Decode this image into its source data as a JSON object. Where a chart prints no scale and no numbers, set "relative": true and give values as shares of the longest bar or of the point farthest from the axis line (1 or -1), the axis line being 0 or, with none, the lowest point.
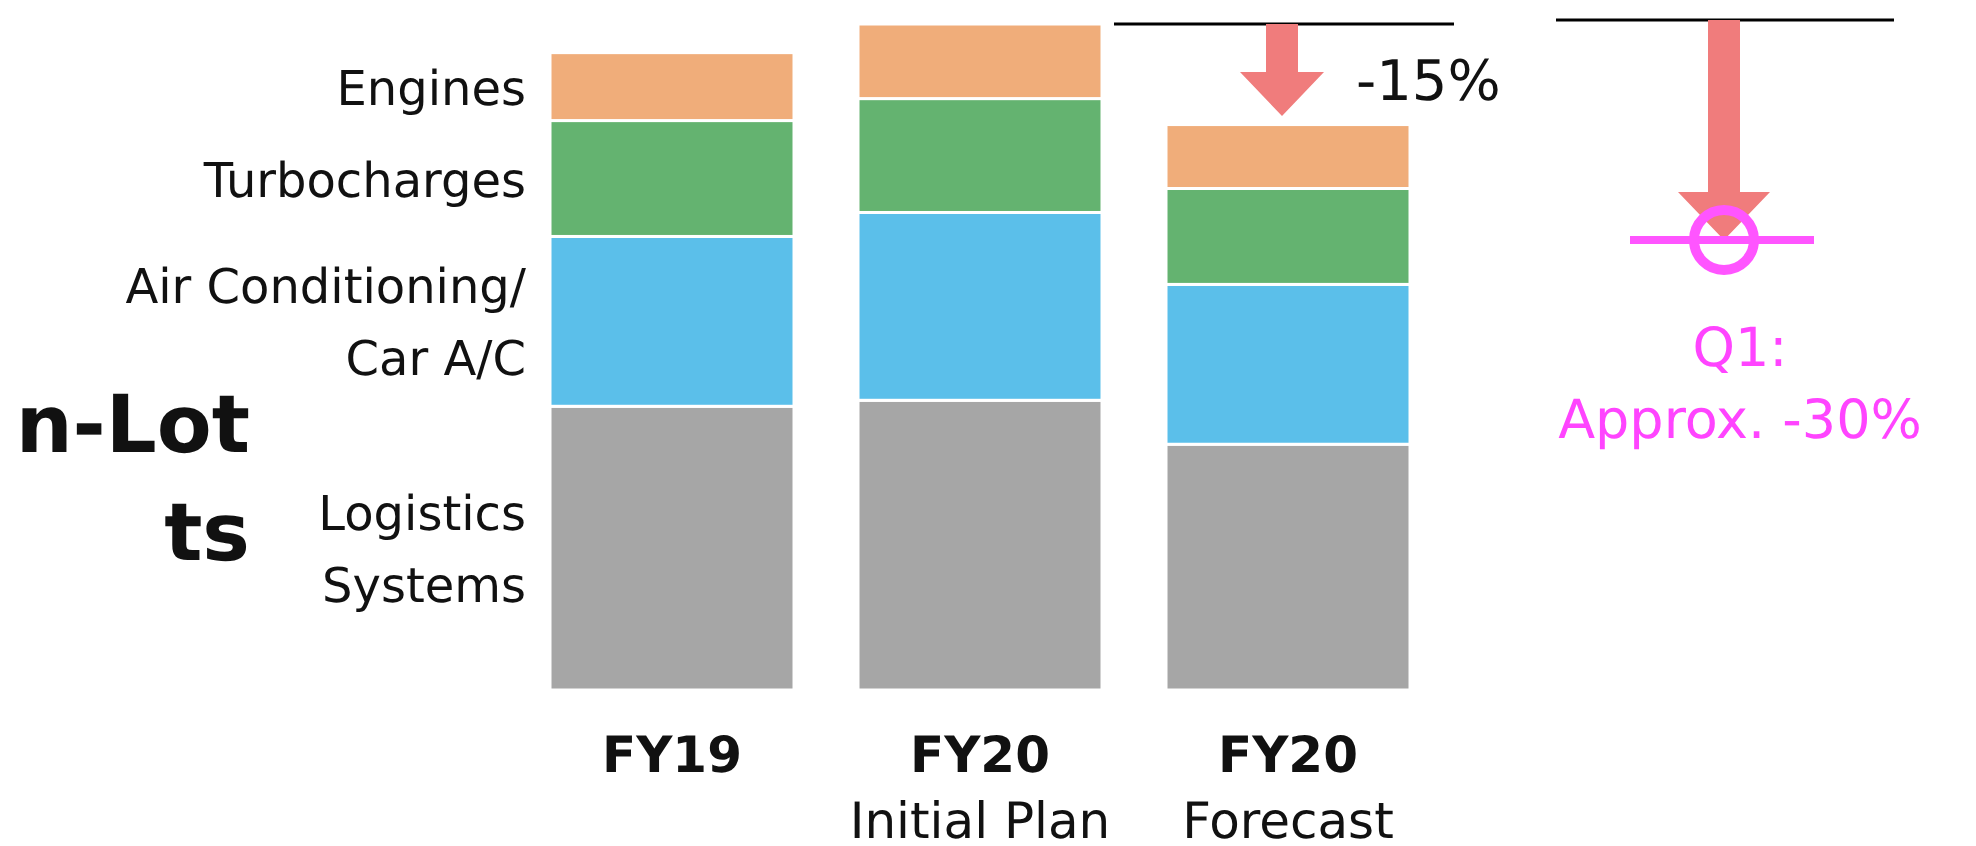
{
  "chart_data": {
    "type": "bar",
    "stacked": true,
    "relative": true,
    "categories": [
      "FY19",
      "FY20\nInitial Plan",
      "FY20\nForecast"
    ],
    "series": [
      {
        "name": "Logistics\nSystems",
        "color": "#a6a6a6",
        "values": [
          0.426,
          0.435,
          0.369
        ]
      },
      {
        "name": "Air Conditioning/\nCar A/C",
        "color": "#5bbfea",
        "values": [
          0.255,
          0.282,
          0.24
        ]
      },
      {
        "name": "Turbocharges",
        "color": "#64b370",
        "values": [
          0.174,
          0.171,
          0.144
        ]
      },
      {
        "name": "Engines",
        "color": "#f0ad7a",
        "values": [
          0.102,
          0.112,
          0.096
        ]
      }
    ],
    "annotations": [
      "-15%",
      "Q1:\nApprox. -30%",
      "n-Lot\nts"
    ]
  }
}
